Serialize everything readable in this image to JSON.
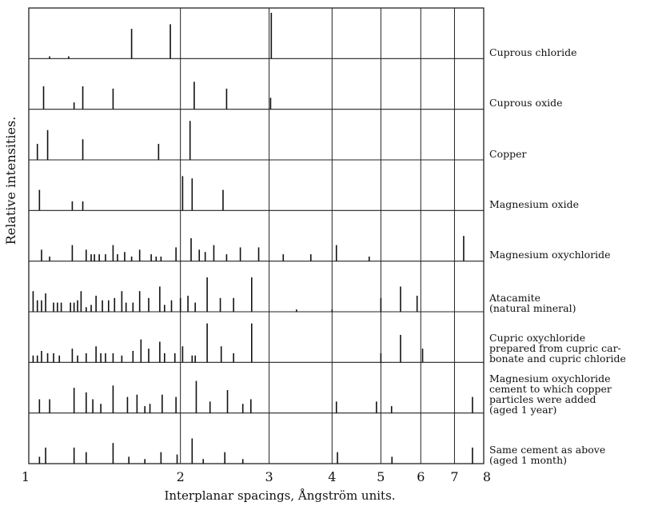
{
  "chart_data": {
    "type": "bar",
    "xlabel": "Interplanar spacings, Ångström units.",
    "ylabel": "Relative intensities.",
    "xscale": "log",
    "xlim": [
      1,
      8
    ],
    "ticks": [
      "1",
      "2",
      "3",
      "4",
      "5",
      "6",
      "7",
      "8"
    ],
    "tick_values": [
      1,
      2,
      3,
      4,
      5,
      6,
      7,
      8
    ],
    "gridlines": [
      2,
      3,
      4,
      5,
      6,
      7,
      8
    ],
    "panels": [
      {
        "label": [
          "Cuprous chloride"
        ],
        "lines": [
          [
            1.1,
            0.05
          ],
          [
            1.2,
            0.05
          ],
          [
            1.6,
            0.65
          ],
          [
            1.91,
            0.75
          ],
          [
            3.03,
            1.0
          ]
        ]
      },
      {
        "label": [
          "Cuprous oxide"
        ],
        "lines": [
          [
            1.07,
            0.5
          ],
          [
            1.23,
            0.15
          ],
          [
            1.28,
            0.5
          ],
          [
            1.47,
            0.45
          ],
          [
            2.13,
            0.6
          ],
          [
            2.47,
            0.45
          ],
          [
            3.02,
            0.25
          ]
        ]
      },
      {
        "label": [
          "Copper"
        ],
        "lines": [
          [
            1.04,
            0.35
          ],
          [
            1.09,
            0.65
          ],
          [
            1.28,
            0.45
          ],
          [
            1.81,
            0.35
          ],
          [
            2.09,
            0.85
          ]
        ]
      },
      {
        "label": [
          "Magnesium oxide"
        ],
        "lines": [
          [
            1.05,
            0.45
          ],
          [
            1.22,
            0.2
          ],
          [
            1.28,
            0.2
          ],
          [
            2.02,
            0.75
          ],
          [
            2.11,
            0.7
          ],
          [
            2.43,
            0.45
          ]
        ]
      },
      {
        "label": [
          "Magnesium oxychloride"
        ],
        "lines": [
          [
            1.06,
            0.25
          ],
          [
            1.1,
            0.1
          ],
          [
            1.22,
            0.35
          ],
          [
            1.3,
            0.25
          ],
          [
            1.33,
            0.15
          ],
          [
            1.35,
            0.15
          ],
          [
            1.38,
            0.15
          ],
          [
            1.42,
            0.15
          ],
          [
            1.47,
            0.35
          ],
          [
            1.5,
            0.15
          ],
          [
            1.55,
            0.2
          ],
          [
            1.6,
            0.1
          ],
          [
            1.66,
            0.25
          ],
          [
            1.75,
            0.15
          ],
          [
            1.79,
            0.1
          ],
          [
            1.83,
            0.1
          ],
          [
            1.96,
            0.3
          ],
          [
            2.1,
            0.5
          ],
          [
            2.18,
            0.25
          ],
          [
            2.24,
            0.2
          ],
          [
            2.33,
            0.35
          ],
          [
            2.47,
            0.15
          ],
          [
            2.63,
            0.3
          ],
          [
            2.86,
            0.3
          ],
          [
            3.2,
            0.15
          ],
          [
            3.63,
            0.15
          ],
          [
            4.08,
            0.35
          ],
          [
            4.74,
            0.1
          ],
          [
            7.3,
            0.55
          ]
        ]
      },
      {
        "label": [
          "Atacamite",
          "(natural mineral)"
        ],
        "lines": [
          [
            1.02,
            0.45
          ],
          [
            1.04,
            0.25
          ],
          [
            1.06,
            0.25
          ],
          [
            1.08,
            0.4
          ],
          [
            1.12,
            0.2
          ],
          [
            1.14,
            0.2
          ],
          [
            1.16,
            0.2
          ],
          [
            1.21,
            0.2
          ],
          [
            1.23,
            0.2
          ],
          [
            1.25,
            0.25
          ],
          [
            1.27,
            0.45
          ],
          [
            1.3,
            0.1
          ],
          [
            1.33,
            0.15
          ],
          [
            1.36,
            0.35
          ],
          [
            1.4,
            0.25
          ],
          [
            1.44,
            0.25
          ],
          [
            1.48,
            0.3
          ],
          [
            1.53,
            0.45
          ],
          [
            1.56,
            0.2
          ],
          [
            1.61,
            0.2
          ],
          [
            1.66,
            0.45
          ],
          [
            1.73,
            0.3
          ],
          [
            1.82,
            0.55
          ],
          [
            1.86,
            0.15
          ],
          [
            1.92,
            0.25
          ],
          [
            2.0,
            0.3
          ],
          [
            2.07,
            0.35
          ],
          [
            2.14,
            0.2
          ],
          [
            2.26,
            0.75
          ],
          [
            2.4,
            0.3
          ],
          [
            2.55,
            0.3
          ],
          [
            2.77,
            0.75
          ],
          [
            3.4,
            0.05
          ],
          [
            4.0,
            0.05
          ],
          [
            5.0,
            0.3
          ],
          [
            5.47,
            0.55
          ],
          [
            5.9,
            0.35
          ]
        ]
      },
      {
        "label": [
          "Cupric oxychloride",
          "prepared from cupric car-",
          "bonate and cupric chloride"
        ],
        "lines": [
          [
            1.02,
            0.15
          ],
          [
            1.04,
            0.15
          ],
          [
            1.06,
            0.25
          ],
          [
            1.09,
            0.2
          ],
          [
            1.12,
            0.2
          ],
          [
            1.15,
            0.15
          ],
          [
            1.22,
            0.3
          ],
          [
            1.25,
            0.15
          ],
          [
            1.3,
            0.2
          ],
          [
            1.36,
            0.35
          ],
          [
            1.39,
            0.2
          ],
          [
            1.42,
            0.2
          ],
          [
            1.47,
            0.2
          ],
          [
            1.53,
            0.15
          ],
          [
            1.61,
            0.25
          ],
          [
            1.67,
            0.5
          ],
          [
            1.73,
            0.3
          ],
          [
            1.82,
            0.45
          ],
          [
            1.86,
            0.2
          ],
          [
            1.95,
            0.2
          ],
          [
            2.02,
            0.35
          ],
          [
            2.11,
            0.15
          ],
          [
            2.14,
            0.15
          ],
          [
            2.26,
            0.85
          ],
          [
            2.41,
            0.35
          ],
          [
            2.55,
            0.2
          ],
          [
            2.77,
            0.85
          ],
          [
            5.0,
            0.2
          ],
          [
            5.47,
            0.6
          ],
          [
            6.05,
            0.3
          ]
        ]
      },
      {
        "label": [
          "Magnesium oxychloride",
          "cement to which copper",
          "particles were added",
          "(aged 1 year)"
        ],
        "lines": [
          [
            1.05,
            0.3
          ],
          [
            1.1,
            0.3
          ],
          [
            1.23,
            0.55
          ],
          [
            1.3,
            0.45
          ],
          [
            1.34,
            0.3
          ],
          [
            1.39,
            0.2
          ],
          [
            1.47,
            0.6
          ],
          [
            1.57,
            0.35
          ],
          [
            1.64,
            0.4
          ],
          [
            1.7,
            0.15
          ],
          [
            1.74,
            0.2
          ],
          [
            1.84,
            0.4
          ],
          [
            1.96,
            0.35
          ],
          [
            2.15,
            0.7
          ],
          [
            2.29,
            0.25
          ],
          [
            2.48,
            0.5
          ],
          [
            2.66,
            0.2
          ],
          [
            2.76,
            0.3
          ],
          [
            4.08,
            0.25
          ],
          [
            4.9,
            0.25
          ],
          [
            5.25,
            0.15
          ],
          [
            7.6,
            0.35
          ]
        ]
      },
      {
        "label": [
          "Same cement as above",
          "(aged 1 month)"
        ],
        "lines": [
          [
            1.05,
            0.15
          ],
          [
            1.08,
            0.35
          ],
          [
            1.23,
            0.35
          ],
          [
            1.3,
            0.25
          ],
          [
            1.47,
            0.45
          ],
          [
            1.58,
            0.15
          ],
          [
            1.7,
            0.1
          ],
          [
            1.83,
            0.25
          ],
          [
            1.97,
            0.2
          ],
          [
            2.11,
            0.55
          ],
          [
            2.22,
            0.1
          ],
          [
            2.45,
            0.25
          ],
          [
            2.66,
            0.1
          ],
          [
            4.1,
            0.25
          ],
          [
            5.26,
            0.15
          ],
          [
            7.6,
            0.35
          ]
        ]
      }
    ]
  }
}
